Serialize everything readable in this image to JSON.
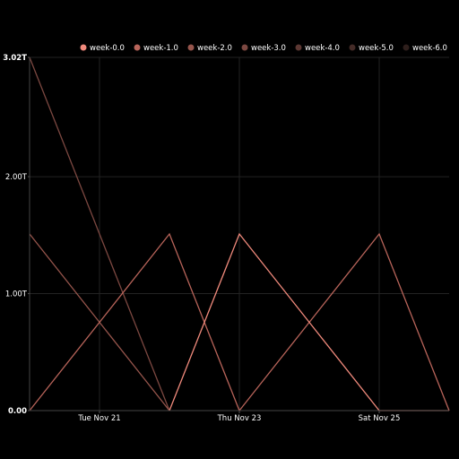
{
  "chart_data": {
    "type": "line",
    "title": "",
    "xlabel": "",
    "ylabel": "",
    "x": [
      "2023-11-20",
      "2023-11-21",
      "2023-11-22",
      "2023-11-23",
      "2023-11-24",
      "2023-11-25",
      "2023-11-26"
    ],
    "x_tick_labels": [
      {
        "date": "2023-11-21",
        "label": "Tue Nov 21"
      },
      {
        "date": "2023-11-23",
        "label": "Thu Nov 23"
      },
      {
        "date": "2023-11-25",
        "label": "Sat Nov 25"
      }
    ],
    "y_tick_labels": [
      {
        "value": 0,
        "label": "0.00",
        "bold": true
      },
      {
        "value": 1.0,
        "label": "1.00T",
        "bold": false
      },
      {
        "value": 2.0,
        "label": "2.00T",
        "bold": false
      },
      {
        "value": 3.02,
        "label": "3.02T",
        "bold": true
      }
    ],
    "ylim": [
      0,
      3.02
    ],
    "y_unit": "T",
    "grid": true,
    "legend_position": "top-right",
    "series": [
      {
        "name": "week-0.0",
        "color": "#f08a7c",
        "values": [
          null,
          null,
          0,
          1.51,
          0.755,
          0,
          0
        ]
      },
      {
        "name": "week-1.0",
        "color": "#b8645a",
        "values": [
          0,
          0.755,
          1.51,
          0,
          0.755,
          1.51,
          0
        ]
      },
      {
        "name": "week-2.0",
        "color": "#96554c",
        "values": [
          1.51,
          0.755,
          0,
          null,
          null,
          null,
          null
        ]
      },
      {
        "name": "week-3.0",
        "color": "#7c4841",
        "values": [
          3.02,
          1.51,
          0,
          null,
          null,
          null,
          null
        ]
      },
      {
        "name": "week-4.0",
        "color": "#5c3833",
        "values": [
          null,
          null,
          null,
          null,
          null,
          null,
          null
        ]
      },
      {
        "name": "week-5.0",
        "color": "#442b27",
        "values": [
          null,
          null,
          null,
          null,
          null,
          null,
          null
        ]
      },
      {
        "name": "week-6.0",
        "color": "#2e1f1c",
        "values": [
          null,
          null,
          null,
          null,
          null,
          null,
          null
        ]
      }
    ]
  }
}
